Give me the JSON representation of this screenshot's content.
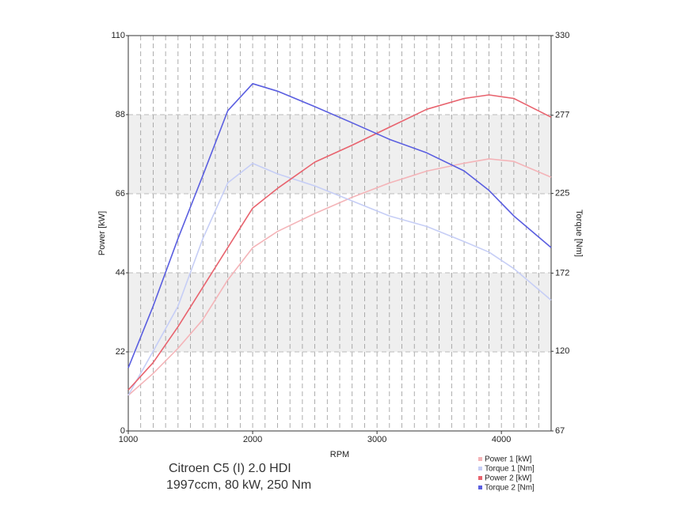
{
  "chart_data": {
    "type": "line",
    "title": "Citroen C5 (I) 2.0 HDI",
    "subtitle": "1997ccm, 80 kW, 250 Nm",
    "x_label": "RPM",
    "y_label": "Power [kW]",
    "y2_label": "Torque [Nm]",
    "x": [
      1000,
      1200,
      1400,
      1600,
      1800,
      2000,
      2200,
      2500,
      2800,
      3100,
      3400,
      3700,
      3900,
      4100,
      4400
    ],
    "xlim": [
      1000,
      4400
    ],
    "xticks": [
      1000,
      2000,
      3000,
      4000
    ],
    "ylim": [
      0,
      110
    ],
    "yticks": [
      0,
      22,
      44,
      66,
      88,
      110
    ],
    "y2lim": [
      67,
      330
    ],
    "y2ticks": [
      67,
      120,
      172,
      225,
      277,
      330
    ],
    "grid": true,
    "legend": "bottom-right",
    "series": [
      {
        "name": "Power 1 [kW]",
        "color": "#f4b4b8",
        "values": [
          9.9,
          16,
          23,
          31,
          42,
          51,
          55.5,
          60.5,
          65,
          69,
          72.3,
          74.5,
          75.7,
          75,
          70.6
        ]
      },
      {
        "name": "Torque 1 [Nm]",
        "color": "#c6cef6",
        "axis": "y2",
        "values": [
          90.7,
          120,
          150,
          195,
          232,
          245,
          238,
          230,
          220,
          210,
          203,
          193,
          186,
          175,
          154
        ]
      },
      {
        "name": "Power 2 [kW]",
        "color": "#e8636e",
        "values": [
          11.4,
          19,
          29,
          40,
          51,
          62,
          67.5,
          74.8,
          79.5,
          84.5,
          89.5,
          92.5,
          93.5,
          92.5,
          87.3
        ]
      },
      {
        "name": "Torque 2 [Nm]",
        "color": "#5a5ee0",
        "axis": "y2",
        "values": [
          109,
          150,
          195,
          237,
          280,
          298,
          293,
          282.7,
          272,
          261,
          252,
          240,
          227,
          210,
          189
        ]
      }
    ]
  }
}
